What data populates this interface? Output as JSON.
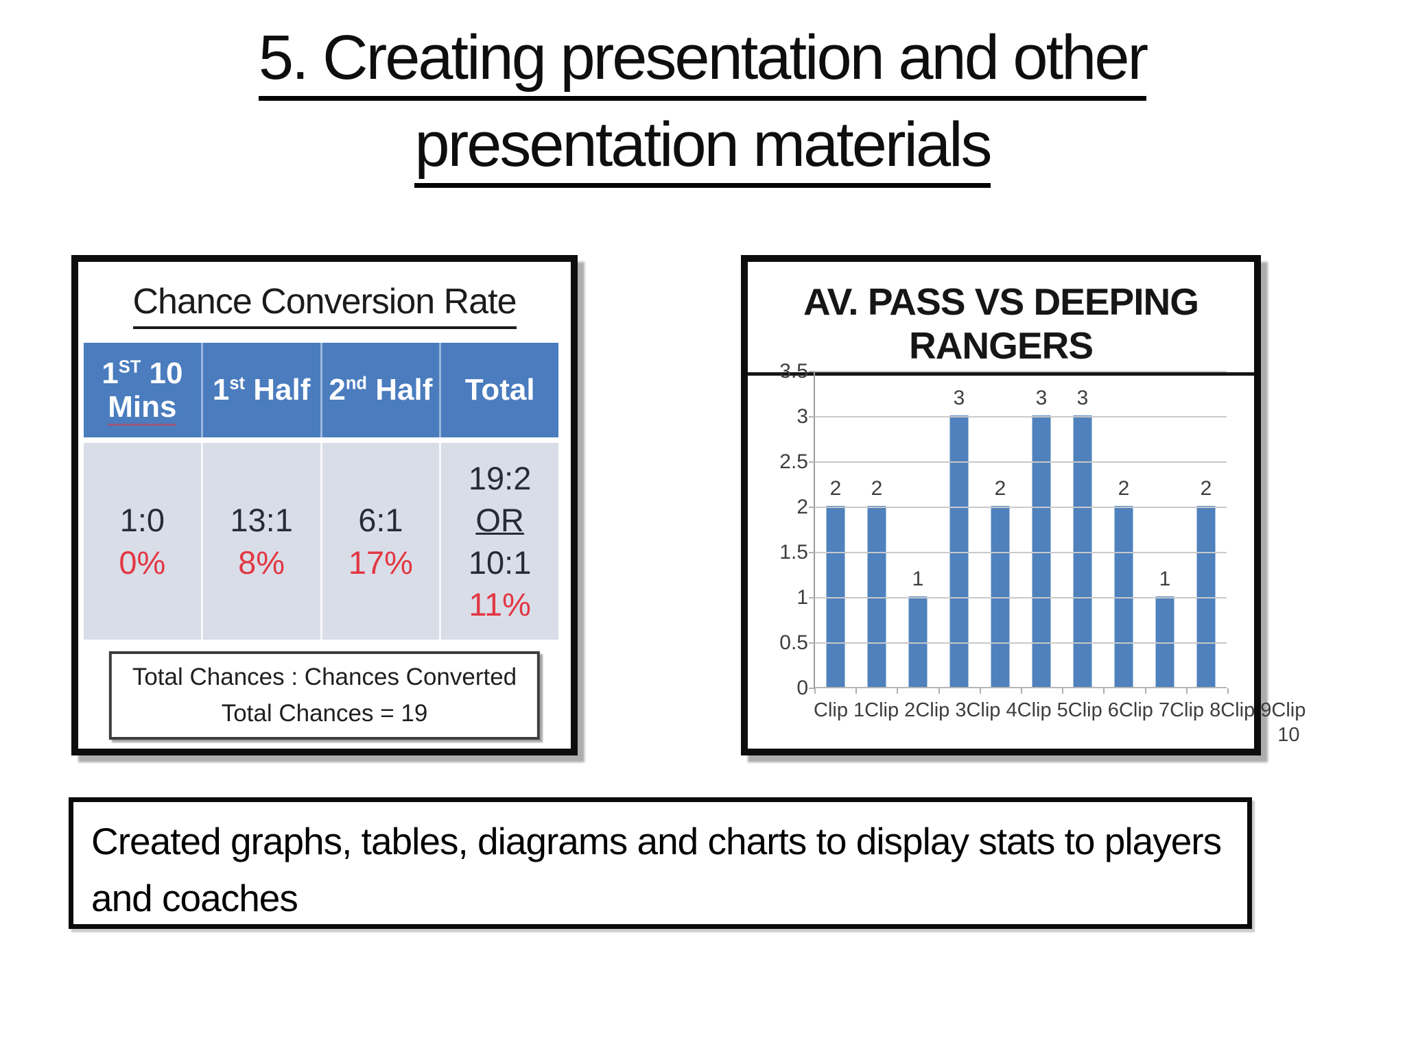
{
  "slide_title": {
    "line1": "5. Creating presentation and other",
    "line2": "presentation materials"
  },
  "left_panel": {
    "title": "Chance Conversion Rate",
    "table": {
      "headers": [
        {
          "num": "1",
          "sup": "ST",
          "rest": " 10",
          "line2": "Mins",
          "spellcheck_underline": true
        },
        {
          "num": "1",
          "sup": "st",
          "rest": " Half"
        },
        {
          "num": "",
          "sup": "",
          "rest": "2",
          "sup2": "nd",
          "rest2": " Half"
        },
        {
          "num": "",
          "sup": "",
          "rest": "Total"
        }
      ],
      "cells": [
        {
          "lines": [
            {
              "text": "1:0",
              "style": "dark"
            },
            {
              "text": "0%",
              "style": "red"
            }
          ]
        },
        {
          "lines": [
            {
              "text": "13:1",
              "style": "dark"
            },
            {
              "text": "8%",
              "style": "red"
            }
          ]
        },
        {
          "lines": [
            {
              "text": "6:1",
              "style": "dark"
            },
            {
              "text": "17%",
              "style": "red"
            }
          ]
        },
        {
          "lines": [
            {
              "text": "19:2",
              "style": "dark"
            },
            {
              "text": "OR",
              "style": "dark-underline"
            },
            {
              "text": "10:1",
              "style": "dark"
            },
            {
              "text": "11%",
              "style": "red"
            }
          ]
        }
      ]
    },
    "note_line1": "Total Chances : Chances Converted",
    "note_line2": "Total Chances = 19"
  },
  "chart_data": {
    "type": "bar",
    "title": "AV. PASS VS DEEPING RANGERS",
    "categories": [
      "Clip 1",
      "Clip 2",
      "Clip 3",
      "Clip 4",
      "Clip 5",
      "Clip 6",
      "Clip 7",
      "Clip 8",
      "Clip 9",
      "Clip 10"
    ],
    "values": [
      2,
      2,
      1,
      3,
      2,
      3,
      3,
      2,
      1,
      2
    ],
    "xlabel": "",
    "ylabel": "",
    "ylim": [
      0,
      3.5
    ],
    "ytick_step": 0.5,
    "grid": true,
    "legend": "none",
    "bar_color": "#4f81bd"
  },
  "bottom_panel": {
    "text": "Created graphs, tables, diagrams and charts to display stats to players and coaches"
  },
  "colors": {
    "table_header_blue": "#4a7cbe",
    "table_row_bg": "#d9dde8",
    "stat_red": "#e23742",
    "bar_blue": "#4f81bd",
    "gridline_gray": "#c9c9c9"
  }
}
